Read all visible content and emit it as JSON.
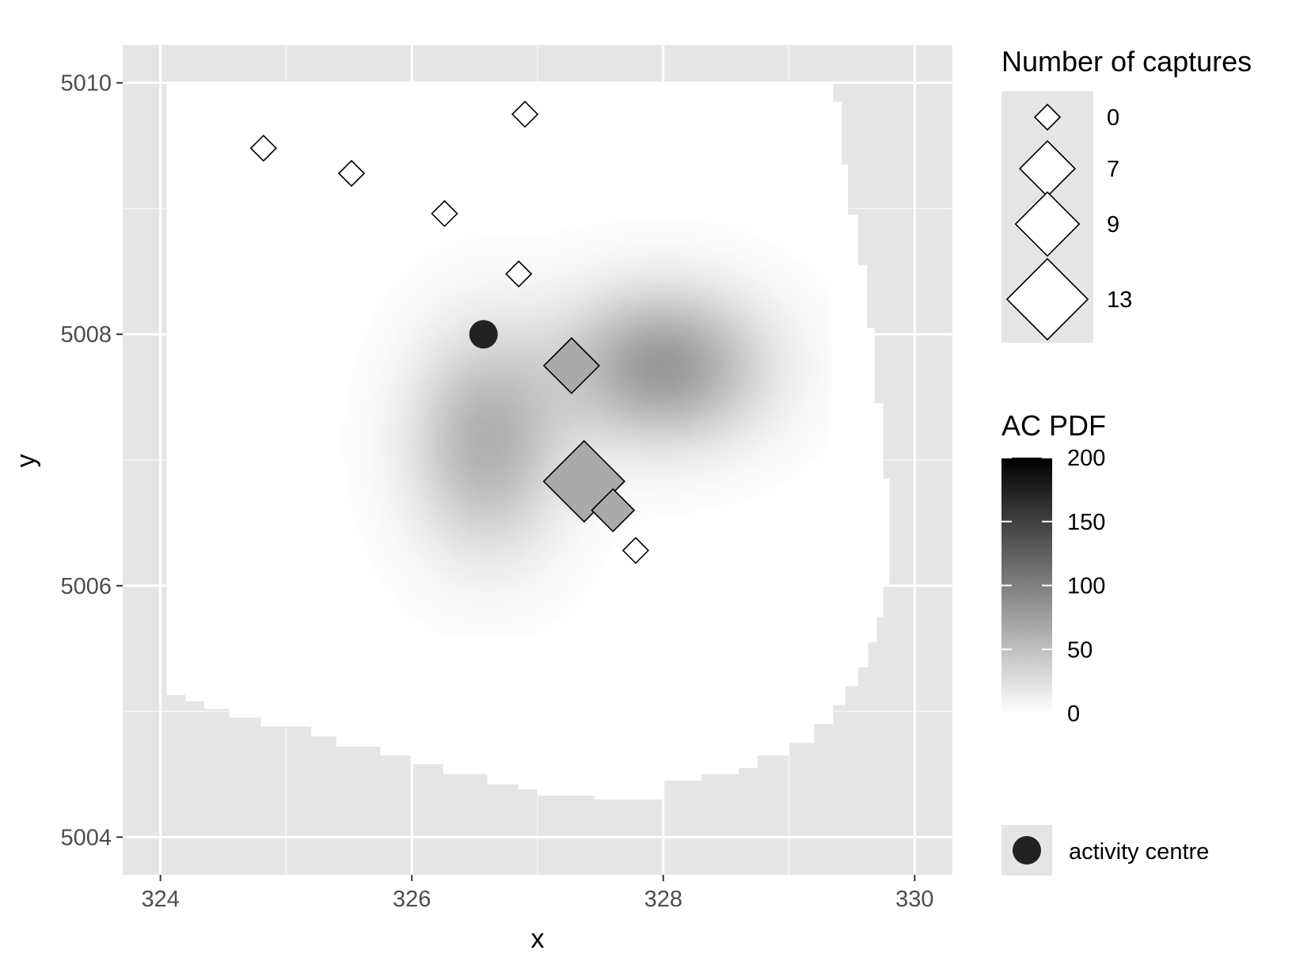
{
  "chart_data": {
    "type": "scatter",
    "xlabel": "x",
    "ylabel": "y",
    "xlim": [
      323.7,
      330.3
    ],
    "ylim": [
      5003.7,
      5010.3
    ],
    "x_ticks": [
      324,
      326,
      328,
      330
    ],
    "x_tick_labels": [
      "324",
      "326",
      "328",
      "330"
    ],
    "y_ticks": [
      5004,
      5006,
      5008,
      5010
    ],
    "y_tick_labels": [
      "5004",
      "5006",
      "5008",
      "5010"
    ],
    "grid": true,
    "panel_background": "#e5e5e5",
    "mask_color": "#ffffff",
    "mask_outline": [
      [
        324.05,
        5010.0
      ],
      [
        329.35,
        5010.0
      ],
      [
        329.35,
        5009.85
      ],
      [
        329.42,
        5009.85
      ],
      [
        329.42,
        5009.35
      ],
      [
        329.47,
        5009.35
      ],
      [
        329.47,
        5008.95
      ],
      [
        329.55,
        5008.95
      ],
      [
        329.55,
        5008.55
      ],
      [
        329.62,
        5008.55
      ],
      [
        329.62,
        5008.05
      ],
      [
        329.68,
        5008.05
      ],
      [
        329.68,
        5007.45
      ],
      [
        329.75,
        5007.45
      ],
      [
        329.75,
        5006.85
      ],
      [
        329.8,
        5006.85
      ],
      [
        329.8,
        5006.0
      ],
      [
        329.75,
        5006.0
      ],
      [
        329.75,
        5005.75
      ],
      [
        329.7,
        5005.75
      ],
      [
        329.7,
        5005.55
      ],
      [
        329.63,
        5005.55
      ],
      [
        329.63,
        5005.35
      ],
      [
        329.55,
        5005.35
      ],
      [
        329.55,
        5005.2
      ],
      [
        329.45,
        5005.2
      ],
      [
        329.45,
        5005.05
      ],
      [
        329.35,
        5005.05
      ],
      [
        329.35,
        5004.9
      ],
      [
        329.2,
        5004.9
      ],
      [
        329.2,
        5004.75
      ],
      [
        329.0,
        5004.75
      ],
      [
        329.0,
        5004.65
      ],
      [
        328.75,
        5004.65
      ],
      [
        328.75,
        5004.55
      ],
      [
        328.6,
        5004.55
      ],
      [
        328.6,
        5004.5
      ],
      [
        328.3,
        5004.5
      ],
      [
        328.3,
        5004.45
      ],
      [
        328.0,
        5004.45
      ],
      [
        328.0,
        5004.3
      ],
      [
        327.45,
        5004.3
      ],
      [
        327.45,
        5004.33
      ],
      [
        327.0,
        5004.33
      ],
      [
        327.0,
        5004.38
      ],
      [
        326.85,
        5004.38
      ],
      [
        326.85,
        5004.42
      ],
      [
        326.6,
        5004.42
      ],
      [
        326.6,
        5004.5
      ],
      [
        326.25,
        5004.5
      ],
      [
        326.25,
        5004.58
      ],
      [
        326.0,
        5004.58
      ],
      [
        326.0,
        5004.65
      ],
      [
        325.75,
        5004.65
      ],
      [
        325.75,
        5004.72
      ],
      [
        325.4,
        5004.72
      ],
      [
        325.4,
        5004.8
      ],
      [
        325.2,
        5004.8
      ],
      [
        325.2,
        5004.88
      ],
      [
        324.8,
        5004.88
      ],
      [
        324.8,
        5004.95
      ],
      [
        324.55,
        5004.95
      ],
      [
        324.55,
        5005.02
      ],
      [
        324.35,
        5005.02
      ],
      [
        324.35,
        5005.08
      ],
      [
        324.2,
        5005.08
      ],
      [
        324.2,
        5005.13
      ],
      [
        324.05,
        5005.13
      ]
    ],
    "density": {
      "name": "AC PDF",
      "range": [
        0,
        200
      ],
      "breaks": [
        0,
        50,
        100,
        150,
        200
      ],
      "colors": {
        "low": "#ffffff",
        "high": "#000000"
      },
      "components": [
        {
          "x": 328.0,
          "y": 5007.75,
          "sx": 0.55,
          "sy": 0.42,
          "peak": 80
        },
        {
          "x": 326.6,
          "y": 5007.15,
          "sx": 0.42,
          "sy": 0.6,
          "peak": 62
        }
      ]
    },
    "traps": [
      {
        "x": 324.82,
        "y": 5009.48,
        "captures": 0
      },
      {
        "x": 325.52,
        "y": 5009.28,
        "captures": 0
      },
      {
        "x": 326.26,
        "y": 5008.96,
        "captures": 0
      },
      {
        "x": 326.9,
        "y": 5009.75,
        "captures": 0
      },
      {
        "x": 326.85,
        "y": 5008.48,
        "captures": 0
      },
      {
        "x": 327.27,
        "y": 5007.75,
        "captures": 7
      },
      {
        "x": 327.37,
        "y": 5006.83,
        "captures": 13
      },
      {
        "x": 327.6,
        "y": 5006.6,
        "captures": 4
      },
      {
        "x": 327.78,
        "y": 5006.28,
        "captures": 0
      }
    ],
    "activity_centre": {
      "x": 326.57,
      "y": 5008.0,
      "color": "#222222"
    },
    "legend": {
      "captures_title": "Number of captures",
      "captures_entries": [
        {
          "label": "0",
          "value": 0
        },
        {
          "label": "7",
          "value": 7
        },
        {
          "label": "9",
          "value": 9
        },
        {
          "label": "13",
          "value": 13
        }
      ],
      "pdf_title": "AC PDF",
      "pdf_labels": [
        "0",
        "50",
        "100",
        "150",
        "200"
      ],
      "ac_label": "activity centre",
      "position": "right"
    },
    "marker_fill": {
      "zero": "#ffffff",
      "captured": "#aaaaaa"
    }
  }
}
